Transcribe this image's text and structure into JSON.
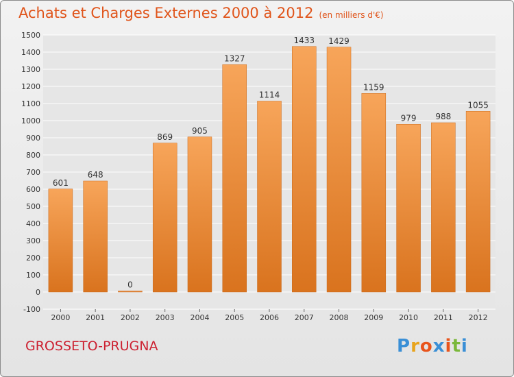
{
  "title": "Achats et Charges Externes 2000 à 2012",
  "subtitle": "(en milliers d'€)",
  "location": "GROSSETO-PRUGNA",
  "logo": {
    "letters": [
      "P",
      "r",
      "o",
      "x",
      "i",
      "t",
      "i"
    ],
    "colors": [
      "#3a8fd6",
      "#e8a41c",
      "#e8541c",
      "#3a8fd6",
      "#e8541c",
      "#7ab83a",
      "#3a8fd6"
    ]
  },
  "colors": {
    "bar_light": "#f7a55a",
    "bar_dark": "#d9731e",
    "grid": "#ffffff",
    "text": "#333333"
  },
  "chart_data": {
    "type": "bar",
    "categories": [
      "2000",
      "2001",
      "2002",
      "2003",
      "2004",
      "2005",
      "2006",
      "2007",
      "2008",
      "2009",
      "2010",
      "2011",
      "2012"
    ],
    "values": [
      601,
      648,
      0,
      869,
      905,
      1327,
      1114,
      1433,
      1429,
      1159,
      979,
      988,
      1055
    ],
    "value_labels": [
      "601",
      "648",
      "0",
      "869",
      "905",
      "1327",
      "1114",
      "1433",
      "1429",
      "1159",
      "979",
      "988",
      "1055"
    ],
    "ylim": [
      -100,
      1500
    ],
    "yticks": [
      -100,
      0,
      100,
      200,
      300,
      400,
      500,
      600,
      700,
      800,
      900,
      1000,
      1100,
      1200,
      1300,
      1400,
      1500
    ],
    "ytick_labels": [
      "-100",
      "0",
      "100",
      "200",
      "300",
      "400",
      "500",
      "600",
      "700",
      "800",
      "900",
      "1000",
      "1100",
      "1200",
      "1300",
      "1400",
      "1500"
    ],
    "grid": true,
    "xlabel": "",
    "ylabel": ""
  }
}
